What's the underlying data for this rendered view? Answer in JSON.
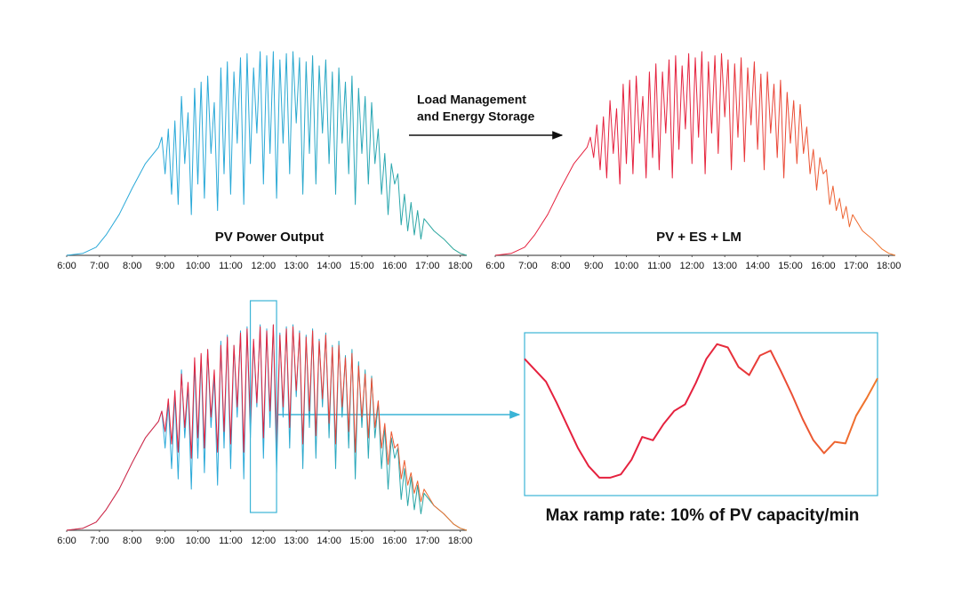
{
  "arrow_label": [
    "Load Management",
    "and Energy Storage"
  ],
  "chart_data": [
    {
      "type": "line",
      "title": "PV Power Output",
      "xlim": [
        6,
        18.2
      ],
      "ylim": [
        0,
        100
      ],
      "xticks": [
        {
          "value": 6,
          "label": "6:00"
        },
        {
          "value": 7,
          "label": "7:00"
        },
        {
          "value": 8,
          "label": "8:00"
        },
        {
          "value": 9,
          "label": "9:00"
        },
        {
          "value": 10,
          "label": "10:00"
        },
        {
          "value": 11,
          "label": "11:00"
        },
        {
          "value": 12,
          "label": "12:00"
        },
        {
          "value": 13,
          "label": "13:00"
        },
        {
          "value": 14,
          "label": "14:00"
        },
        {
          "value": 15,
          "label": "15:00"
        },
        {
          "value": 16,
          "label": "16:00"
        },
        {
          "value": 17,
          "label": "17:00"
        },
        {
          "value": 18,
          "label": "18:00"
        }
      ],
      "series": [
        {
          "colors": [
            "#2aa9d8",
            "#2aa9d8",
            "#2aa594"
          ],
          "x": [
            6,
            6.5,
            6.9,
            7.2,
            7.6,
            8.0,
            8.4,
            8.8,
            8.9,
            9.0,
            9.1,
            9.2,
            9.3,
            9.4,
            9.5,
            9.6,
            9.7,
            9.8,
            9.9,
            10.0,
            10.1,
            10.2,
            10.3,
            10.4,
            10.5,
            10.6,
            10.7,
            10.8,
            10.9,
            11.0,
            11.1,
            11.2,
            11.3,
            11.4,
            11.5,
            11.6,
            11.7,
            11.8,
            11.9,
            12.0,
            12.1,
            12.2,
            12.3,
            12.4,
            12.5,
            12.6,
            12.7,
            12.8,
            12.9,
            13.0,
            13.1,
            13.2,
            13.3,
            13.4,
            13.5,
            13.6,
            13.7,
            13.8,
            13.9,
            14.0,
            14.1,
            14.2,
            14.3,
            14.4,
            14.5,
            14.6,
            14.7,
            14.8,
            14.9,
            15.0,
            15.1,
            15.2,
            15.3,
            15.4,
            15.5,
            15.6,
            15.7,
            15.8,
            15.9,
            16.0,
            16.1,
            16.2,
            16.3,
            16.4,
            16.5,
            16.6,
            16.7,
            16.8,
            16.9,
            17.2,
            17.5,
            17.8,
            18.0,
            18.2
          ],
          "values": [
            0,
            1,
            4,
            10,
            20,
            33,
            45,
            53,
            58,
            40,
            62,
            30,
            66,
            25,
            78,
            45,
            70,
            20,
            82,
            35,
            85,
            28,
            88,
            50,
            75,
            22,
            92,
            40,
            95,
            30,
            90,
            55,
            97,
            25,
            99,
            45,
            92,
            60,
            100,
            35,
            98,
            50,
            100,
            28,
            96,
            55,
            99,
            40,
            100,
            65,
            97,
            30,
            95,
            50,
            98,
            35,
            93,
            60,
            96,
            45,
            90,
            30,
            92,
            55,
            85,
            40,
            88,
            25,
            82,
            50,
            78,
            35,
            75,
            45,
            62,
            30,
            50,
            20,
            45,
            35,
            40,
            15,
            30,
            12,
            26,
            10,
            22,
            8,
            18,
            12,
            8,
            3,
            1,
            0
          ]
        }
      ]
    },
    {
      "type": "line",
      "title": "PV + ES + LM",
      "xlim": [
        6,
        18.2
      ],
      "ylim": [
        0,
        100
      ],
      "xticks": [
        {
          "value": 6,
          "label": "6:00"
        },
        {
          "value": 7,
          "label": "7:00"
        },
        {
          "value": 8,
          "label": "8:00"
        },
        {
          "value": 9,
          "label": "9:00"
        },
        {
          "value": 10,
          "label": "10:00"
        },
        {
          "value": 11,
          "label": "11:00"
        },
        {
          "value": 12,
          "label": "12:00"
        },
        {
          "value": 13,
          "label": "13:00"
        },
        {
          "value": 14,
          "label": "14:00"
        },
        {
          "value": 15,
          "label": "15:00"
        },
        {
          "value": 16,
          "label": "16:00"
        },
        {
          "value": 17,
          "label": "17:00"
        },
        {
          "value": 18,
          "label": "18:00"
        }
      ],
      "series": [
        {
          "colors": [
            "#e5213e",
            "#e5213e",
            "#f07a2c"
          ],
          "x": [
            6,
            6.5,
            6.9,
            7.2,
            7.6,
            8.0,
            8.4,
            8.8,
            8.9,
            9.0,
            9.1,
            9.2,
            9.3,
            9.4,
            9.5,
            9.6,
            9.7,
            9.8,
            9.9,
            10.0,
            10.1,
            10.2,
            10.3,
            10.4,
            10.5,
            10.6,
            10.7,
            10.8,
            10.9,
            11.0,
            11.1,
            11.2,
            11.3,
            11.4,
            11.5,
            11.6,
            11.7,
            11.8,
            11.9,
            12.0,
            12.1,
            12.2,
            12.3,
            12.4,
            12.5,
            12.6,
            12.7,
            12.8,
            12.9,
            13.0,
            13.1,
            13.2,
            13.3,
            13.4,
            13.5,
            13.6,
            13.7,
            13.8,
            13.9,
            14.0,
            14.1,
            14.2,
            14.3,
            14.4,
            14.5,
            14.6,
            14.7,
            14.8,
            14.9,
            15.0,
            15.1,
            15.2,
            15.3,
            15.4,
            15.5,
            15.6,
            15.7,
            15.8,
            15.9,
            16.0,
            16.1,
            16.2,
            16.3,
            16.4,
            16.5,
            16.6,
            16.7,
            16.8,
            16.9,
            17.2,
            17.5,
            17.8,
            18.0,
            18.2
          ],
          "values": [
            0,
            1,
            4,
            10,
            20,
            33,
            45,
            53,
            58,
            48,
            64,
            42,
            68,
            38,
            76,
            50,
            72,
            35,
            84,
            45,
            86,
            40,
            88,
            55,
            78,
            38,
            90,
            48,
            94,
            42,
            90,
            60,
            96,
            38,
            98,
            52,
            93,
            62,
            99,
            45,
            97,
            58,
            100,
            40,
            95,
            60,
            98,
            50,
            99,
            68,
            96,
            42,
            94,
            58,
            97,
            46,
            92,
            64,
            95,
            52,
            89,
            42,
            90,
            60,
            84,
            48,
            86,
            38,
            80,
            55,
            76,
            45,
            74,
            50,
            63,
            40,
            52,
            32,
            48,
            40,
            42,
            25,
            34,
            22,
            28,
            18,
            24,
            14,
            20,
            12,
            8,
            3,
            1,
            0
          ]
        }
      ]
    },
    {
      "type": "line",
      "xlim": [
        6,
        18.2
      ],
      "ylim": [
        0,
        100
      ],
      "highlight": [
        11.6,
        12.4
      ],
      "xticks": [
        {
          "value": 6,
          "label": "6:00"
        },
        {
          "value": 7,
          "label": "7:00"
        },
        {
          "value": 8,
          "label": "8:00"
        },
        {
          "value": 9,
          "label": "9:00"
        },
        {
          "value": 10,
          "label": "10:00"
        },
        {
          "value": 11,
          "label": "11:00"
        },
        {
          "value": 12,
          "label": "12:00"
        },
        {
          "value": 13,
          "label": "13:00"
        },
        {
          "value": 14,
          "label": "14:00"
        },
        {
          "value": 15,
          "label": "15:00"
        },
        {
          "value": 16,
          "label": "16:00"
        },
        {
          "value": 17,
          "label": "17:00"
        },
        {
          "value": 18,
          "label": "18:00"
        }
      ],
      "series": [
        {
          "colors": [
            "#2aa9d8",
            "#2aa9d8",
            "#2aa594"
          ],
          "x": [
            6,
            6.5,
            6.9,
            7.2,
            7.6,
            8.0,
            8.4,
            8.8,
            8.9,
            9.0,
            9.1,
            9.2,
            9.3,
            9.4,
            9.5,
            9.6,
            9.7,
            9.8,
            9.9,
            10.0,
            10.1,
            10.2,
            10.3,
            10.4,
            10.5,
            10.6,
            10.7,
            10.8,
            10.9,
            11.0,
            11.1,
            11.2,
            11.3,
            11.4,
            11.5,
            11.6,
            11.7,
            11.8,
            11.9,
            12.0,
            12.1,
            12.2,
            12.3,
            12.4,
            12.5,
            12.6,
            12.7,
            12.8,
            12.9,
            13.0,
            13.1,
            13.2,
            13.3,
            13.4,
            13.5,
            13.6,
            13.7,
            13.8,
            13.9,
            14.0,
            14.1,
            14.2,
            14.3,
            14.4,
            14.5,
            14.6,
            14.7,
            14.8,
            14.9,
            15.0,
            15.1,
            15.2,
            15.3,
            15.4,
            15.5,
            15.6,
            15.7,
            15.8,
            15.9,
            16.0,
            16.1,
            16.2,
            16.3,
            16.4,
            16.5,
            16.6,
            16.7,
            16.8,
            16.9,
            17.2,
            17.5,
            17.8,
            18.0,
            18.2
          ],
          "values": [
            0,
            1,
            4,
            10,
            20,
            33,
            45,
            53,
            58,
            40,
            62,
            30,
            66,
            25,
            78,
            45,
            70,
            20,
            82,
            35,
            85,
            28,
            88,
            50,
            75,
            22,
            92,
            40,
            95,
            30,
            90,
            55,
            97,
            25,
            99,
            45,
            92,
            60,
            100,
            35,
            98,
            50,
            100,
            28,
            96,
            55,
            99,
            40,
            100,
            65,
            97,
            30,
            95,
            50,
            98,
            35,
            93,
            60,
            96,
            45,
            90,
            30,
            92,
            55,
            85,
            40,
            88,
            25,
            82,
            50,
            78,
            35,
            75,
            45,
            62,
            30,
            50,
            20,
            45,
            35,
            40,
            15,
            30,
            12,
            26,
            10,
            22,
            8,
            18,
            12,
            8,
            3,
            1,
            0
          ]
        },
        {
          "colors": [
            "#e5213e",
            "#e5213e",
            "#f07a2c"
          ],
          "x": [
            6,
            6.5,
            6.9,
            7.2,
            7.6,
            8.0,
            8.4,
            8.8,
            8.9,
            9.0,
            9.1,
            9.2,
            9.3,
            9.4,
            9.5,
            9.6,
            9.7,
            9.8,
            9.9,
            10.0,
            10.1,
            10.2,
            10.3,
            10.4,
            10.5,
            10.6,
            10.7,
            10.8,
            10.9,
            11.0,
            11.1,
            11.2,
            11.3,
            11.4,
            11.5,
            11.6,
            11.7,
            11.8,
            11.9,
            12.0,
            12.1,
            12.2,
            12.3,
            12.4,
            12.5,
            12.6,
            12.7,
            12.8,
            12.9,
            13.0,
            13.1,
            13.2,
            13.3,
            13.4,
            13.5,
            13.6,
            13.7,
            13.8,
            13.9,
            14.0,
            14.1,
            14.2,
            14.3,
            14.4,
            14.5,
            14.6,
            14.7,
            14.8,
            14.9,
            15.0,
            15.1,
            15.2,
            15.3,
            15.4,
            15.5,
            15.6,
            15.7,
            15.8,
            15.9,
            16.0,
            16.1,
            16.2,
            16.3,
            16.4,
            16.5,
            16.6,
            16.7,
            16.8,
            16.9,
            17.2,
            17.5,
            17.8,
            18.0,
            18.2
          ],
          "values": [
            0,
            1,
            4,
            10,
            20,
            33,
            45,
            53,
            58,
            48,
            64,
            42,
            68,
            38,
            76,
            50,
            72,
            35,
            84,
            45,
            86,
            40,
            88,
            55,
            78,
            38,
            90,
            48,
            94,
            42,
            90,
            60,
            96,
            38,
            98,
            52,
            93,
            62,
            99,
            45,
            97,
            58,
            100,
            40,
            95,
            60,
            98,
            50,
            99,
            68,
            96,
            42,
            94,
            58,
            97,
            46,
            92,
            64,
            95,
            52,
            89,
            42,
            90,
            60,
            84,
            48,
            86,
            38,
            80,
            55,
            76,
            45,
            74,
            50,
            63,
            40,
            52,
            32,
            48,
            40,
            42,
            25,
            34,
            22,
            28,
            18,
            24,
            14,
            20,
            12,
            8,
            3,
            1,
            0
          ]
        }
      ]
    },
    {
      "type": "line",
      "caption": "Max ramp rate: 10% of PV capacity/min",
      "ylim": [
        0,
        100
      ],
      "frame_color": "#3bb4d6",
      "series": [
        {
          "colors": [
            "#e5213e",
            "#e5213e",
            "#f07a2c"
          ],
          "values": [
            84,
            77,
            70,
            57,
            43,
            29,
            18,
            11,
            11,
            13,
            22,
            36,
            34,
            44,
            52,
            56,
            69,
            84,
            93,
            91,
            79,
            74,
            86,
            89,
            76,
            62,
            47,
            34,
            26,
            33,
            32,
            49,
            60,
            72
          ]
        }
      ]
    }
  ]
}
